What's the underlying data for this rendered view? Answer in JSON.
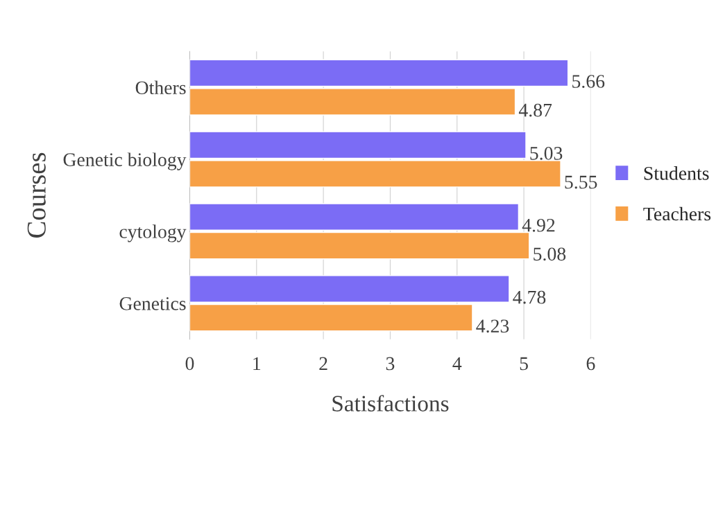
{
  "chart_data": {
    "type": "bar",
    "orientation": "horizontal",
    "categories": [
      "Others",
      "Genetic biology",
      "cytology",
      "Genetics"
    ],
    "series": [
      {
        "name": "Students",
        "color": "#7b6cf5",
        "values": [
          5.66,
          5.03,
          4.92,
          4.78
        ]
      },
      {
        "name": "Teachers",
        "color": "#f7a046",
        "values": [
          4.87,
          5.55,
          5.08,
          4.23
        ]
      }
    ],
    "xlabel": "Satisfactions",
    "ylabel": "Courses",
    "xlim": [
      0,
      6
    ],
    "xticks": [
      0,
      1,
      2,
      3,
      4,
      5,
      6
    ],
    "grid": "x",
    "legend": "right",
    "data_labels": true
  }
}
